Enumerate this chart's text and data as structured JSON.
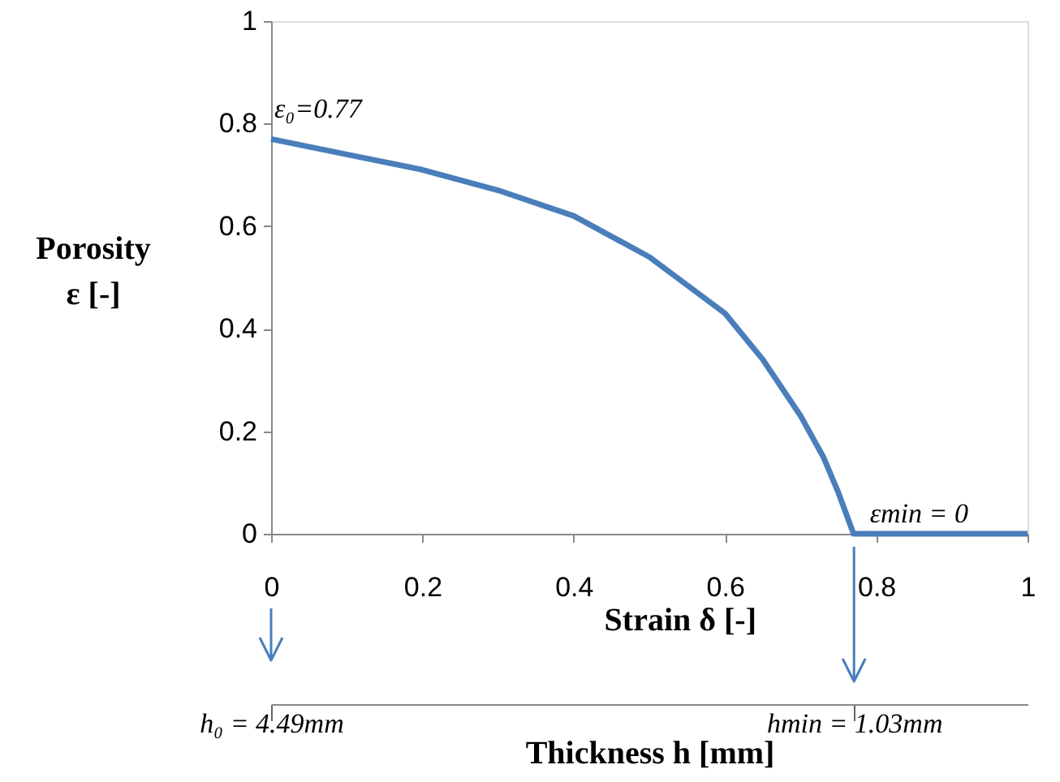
{
  "chart_data": {
    "type": "line",
    "xlabel": "Strain δ [-]",
    "ylabel": "Porosity\nε [-]",
    "x2label": "Thickness h [mm]",
    "x": [
      0,
      0.1,
      0.2,
      0.3,
      0.4,
      0.5,
      0.6,
      0.65,
      0.7,
      0.73,
      0.75,
      0.77,
      1
    ],
    "series": [
      {
        "color": "#4a7ebb",
        "values": [
          0.77,
          0.74,
          0.71,
          0.67,
          0.62,
          0.54,
          0.43,
          0.34,
          0.23,
          0.15,
          0.08,
          0,
          0
        ]
      }
    ],
    "xlim": [
      0,
      1
    ],
    "xticks": [
      0,
      0.2,
      0.4,
      0.6,
      0.8,
      1
    ],
    "ylim": [
      0,
      1
    ],
    "yticks": [
      0,
      0.2,
      0.4,
      0.6,
      0.8,
      1
    ],
    "x2lim": [
      4.49,
      0
    ],
    "x2ticks": [
      {
        "value": 4.49,
        "label": "h₀ = 4.49mm"
      },
      {
        "value": 1.03,
        "label": "hmin = 1.03mm"
      }
    ],
    "annotations": [
      {
        "text": "ε₀=0.77",
        "x": 0,
        "y": 0.77
      },
      {
        "text": "εmin = 0",
        "x": 0.77,
        "y": 0
      }
    ],
    "grid": false,
    "marker": "none",
    "line_style": "solid"
  }
}
